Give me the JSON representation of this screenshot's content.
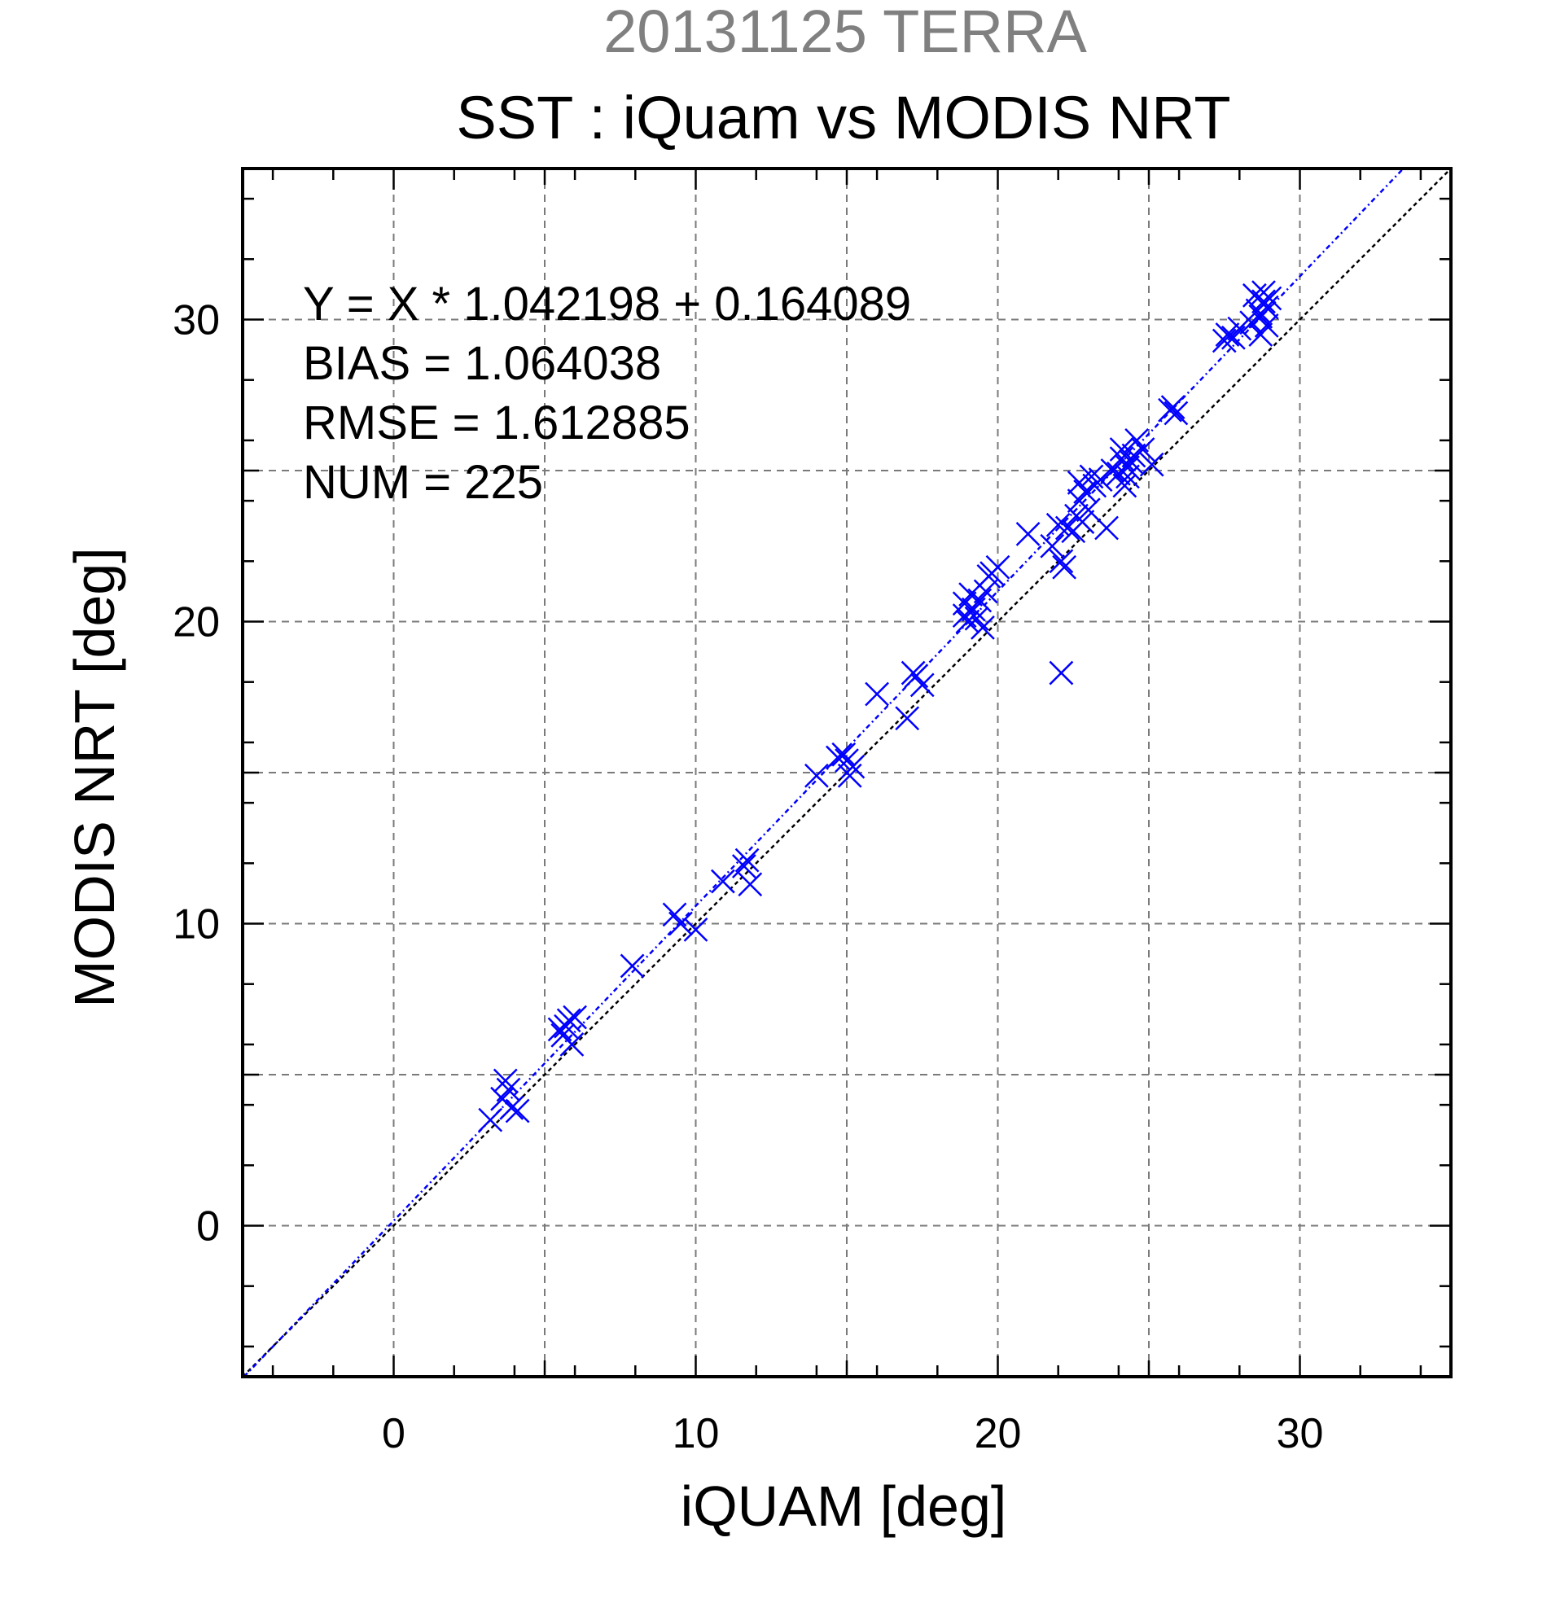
{
  "chart_data": {
    "type": "scatter",
    "title_date": "20131125 TERRA",
    "title": "SST : iQuam vs MODIS NRT",
    "xlabel": "iQUAM [deg]",
    "ylabel": "MODIS NRT [deg]",
    "xlim": [
      -5,
      35
    ],
    "ylim": [
      -5,
      35
    ],
    "x_ticks": [
      0,
      10,
      20,
      30
    ],
    "y_ticks": [
      0,
      10,
      20,
      30
    ],
    "x_tick_labels": [
      "0",
      "10",
      "20",
      "30"
    ],
    "y_tick_labels": [
      "0",
      "10",
      "20",
      "30"
    ],
    "grid": true,
    "marker_color": "#0000ff",
    "fit": {
      "slope": 1.042198,
      "intercept": 0.164089,
      "color": "#0000ff"
    },
    "identity_line": true,
    "stats": [
      "Y = X * 1.042198 + 0.164089",
      "BIAS = 1.064038",
      "RMSE = 1.612885",
      "NUM = 225"
    ],
    "points": [
      [
        3.2,
        3.5
      ],
      [
        3.6,
        4.2
      ],
      [
        3.7,
        4.8
      ],
      [
        3.8,
        4.5
      ],
      [
        3.9,
        3.9
      ],
      [
        4.1,
        3.8
      ],
      [
        5.5,
        6.5
      ],
      [
        5.6,
        6.3
      ],
      [
        5.7,
        6.6
      ],
      [
        5.8,
        6.8
      ],
      [
        5.9,
        6.0
      ],
      [
        6.0,
        6.9
      ],
      [
        7.9,
        8.6
      ],
      [
        9.3,
        10.3
      ],
      [
        9.5,
        10.0
      ],
      [
        10.0,
        9.8
      ],
      [
        10.9,
        11.4
      ],
      [
        11.6,
        11.9
      ],
      [
        11.7,
        12.1
      ],
      [
        11.8,
        11.3
      ],
      [
        14.0,
        14.9
      ],
      [
        14.7,
        15.5
      ],
      [
        14.9,
        15.6
      ],
      [
        15.0,
        15.4
      ],
      [
        15.1,
        14.9
      ],
      [
        15.2,
        15.2
      ],
      [
        16.0,
        17.6
      ],
      [
        17.0,
        16.8
      ],
      [
        17.2,
        18.3
      ],
      [
        17.3,
        18.2
      ],
      [
        17.5,
        17.9
      ],
      [
        18.9,
        20.2
      ],
      [
        18.9,
        20.6
      ],
      [
        19.0,
        20.0
      ],
      [
        19.1,
        20.9
      ],
      [
        19.2,
        20.4
      ],
      [
        19.3,
        20.1
      ],
      [
        19.4,
        20.7
      ],
      [
        19.5,
        19.8
      ],
      [
        19.6,
        21.0
      ],
      [
        19.7,
        21.5
      ],
      [
        19.8,
        21.6
      ],
      [
        20.0,
        21.8
      ],
      [
        21.0,
        22.9
      ],
      [
        21.8,
        22.5
      ],
      [
        22.0,
        23.2
      ],
      [
        22.1,
        22.0
      ],
      [
        22.1,
        18.3
      ],
      [
        22.2,
        21.8
      ],
      [
        22.3,
        23.1
      ],
      [
        22.5,
        23.0
      ],
      [
        22.6,
        23.5
      ],
      [
        22.7,
        24.0
      ],
      [
        22.7,
        24.6
      ],
      [
        22.8,
        23.3
      ],
      [
        22.9,
        24.3
      ],
      [
        23.0,
        23.7
      ],
      [
        23.1,
        24.8
      ],
      [
        23.2,
        24.5
      ],
      [
        23.4,
        24.7
      ],
      [
        23.6,
        23.1
      ],
      [
        23.8,
        25.0
      ],
      [
        24.0,
        24.9
      ],
      [
        24.1,
        25.4
      ],
      [
        24.1,
        25.7
      ],
      [
        24.2,
        24.5
      ],
      [
        24.3,
        25.1
      ],
      [
        24.3,
        24.8
      ],
      [
        24.4,
        25.3
      ],
      [
        24.5,
        25.5
      ],
      [
        24.6,
        26.0
      ],
      [
        24.8,
        25.7
      ],
      [
        25.1,
        25.2
      ],
      [
        25.7,
        27.0
      ],
      [
        25.8,
        27.1
      ],
      [
        25.9,
        26.9
      ],
      [
        27.5,
        29.3
      ],
      [
        27.6,
        29.5
      ],
      [
        27.8,
        29.4
      ],
      [
        28.0,
        29.7
      ],
      [
        28.4,
        29.9
      ],
      [
        28.5,
        30.8
      ],
      [
        28.6,
        30.3
      ],
      [
        28.7,
        30.1
      ],
      [
        28.7,
        29.5
      ],
      [
        28.8,
        30.9
      ],
      [
        28.8,
        30.6
      ],
      [
        28.9,
        29.8
      ],
      [
        28.9,
        30.4
      ],
      [
        29.0,
        30.7
      ]
    ]
  }
}
